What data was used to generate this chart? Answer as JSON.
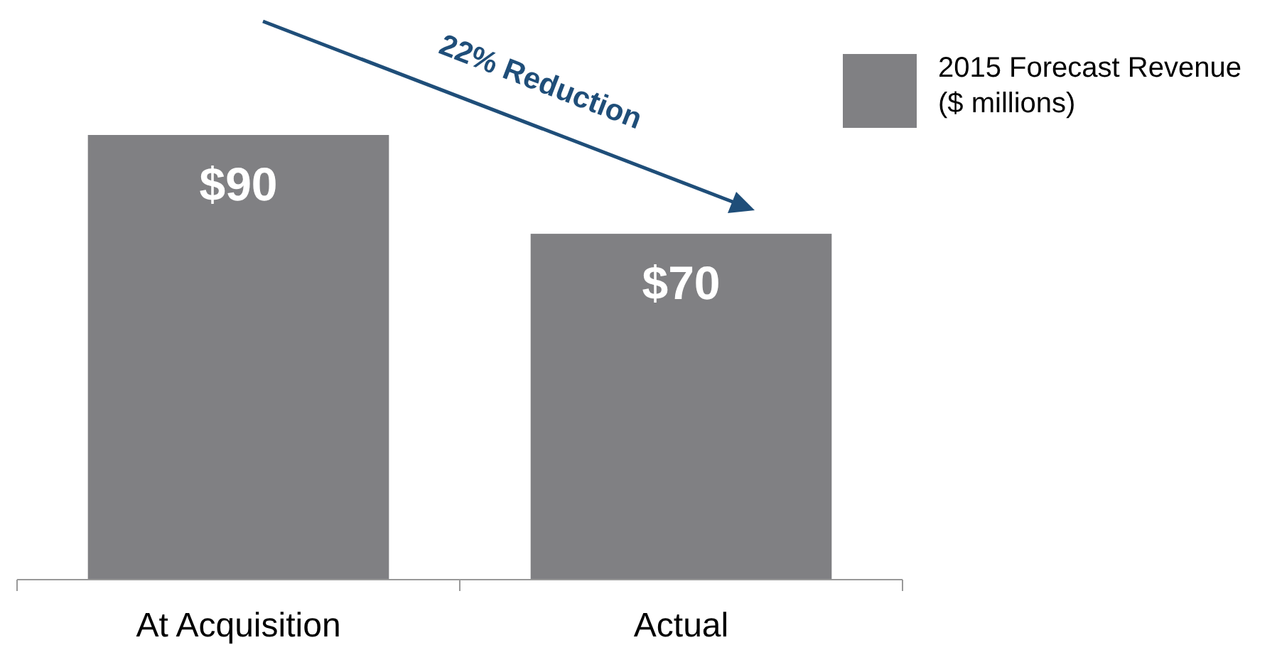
{
  "chart_data": {
    "type": "bar",
    "categories": [
      "At Acquisition",
      "Actual"
    ],
    "series": [
      {
        "name": "2015 Forecast Revenue ($ millions)",
        "color": "#808083",
        "values": [
          90,
          70
        ],
        "value_labels": [
          "$90",
          "$70"
        ]
      }
    ],
    "annotations": [
      "22% Reduction"
    ],
    "legend": "right"
  }
}
